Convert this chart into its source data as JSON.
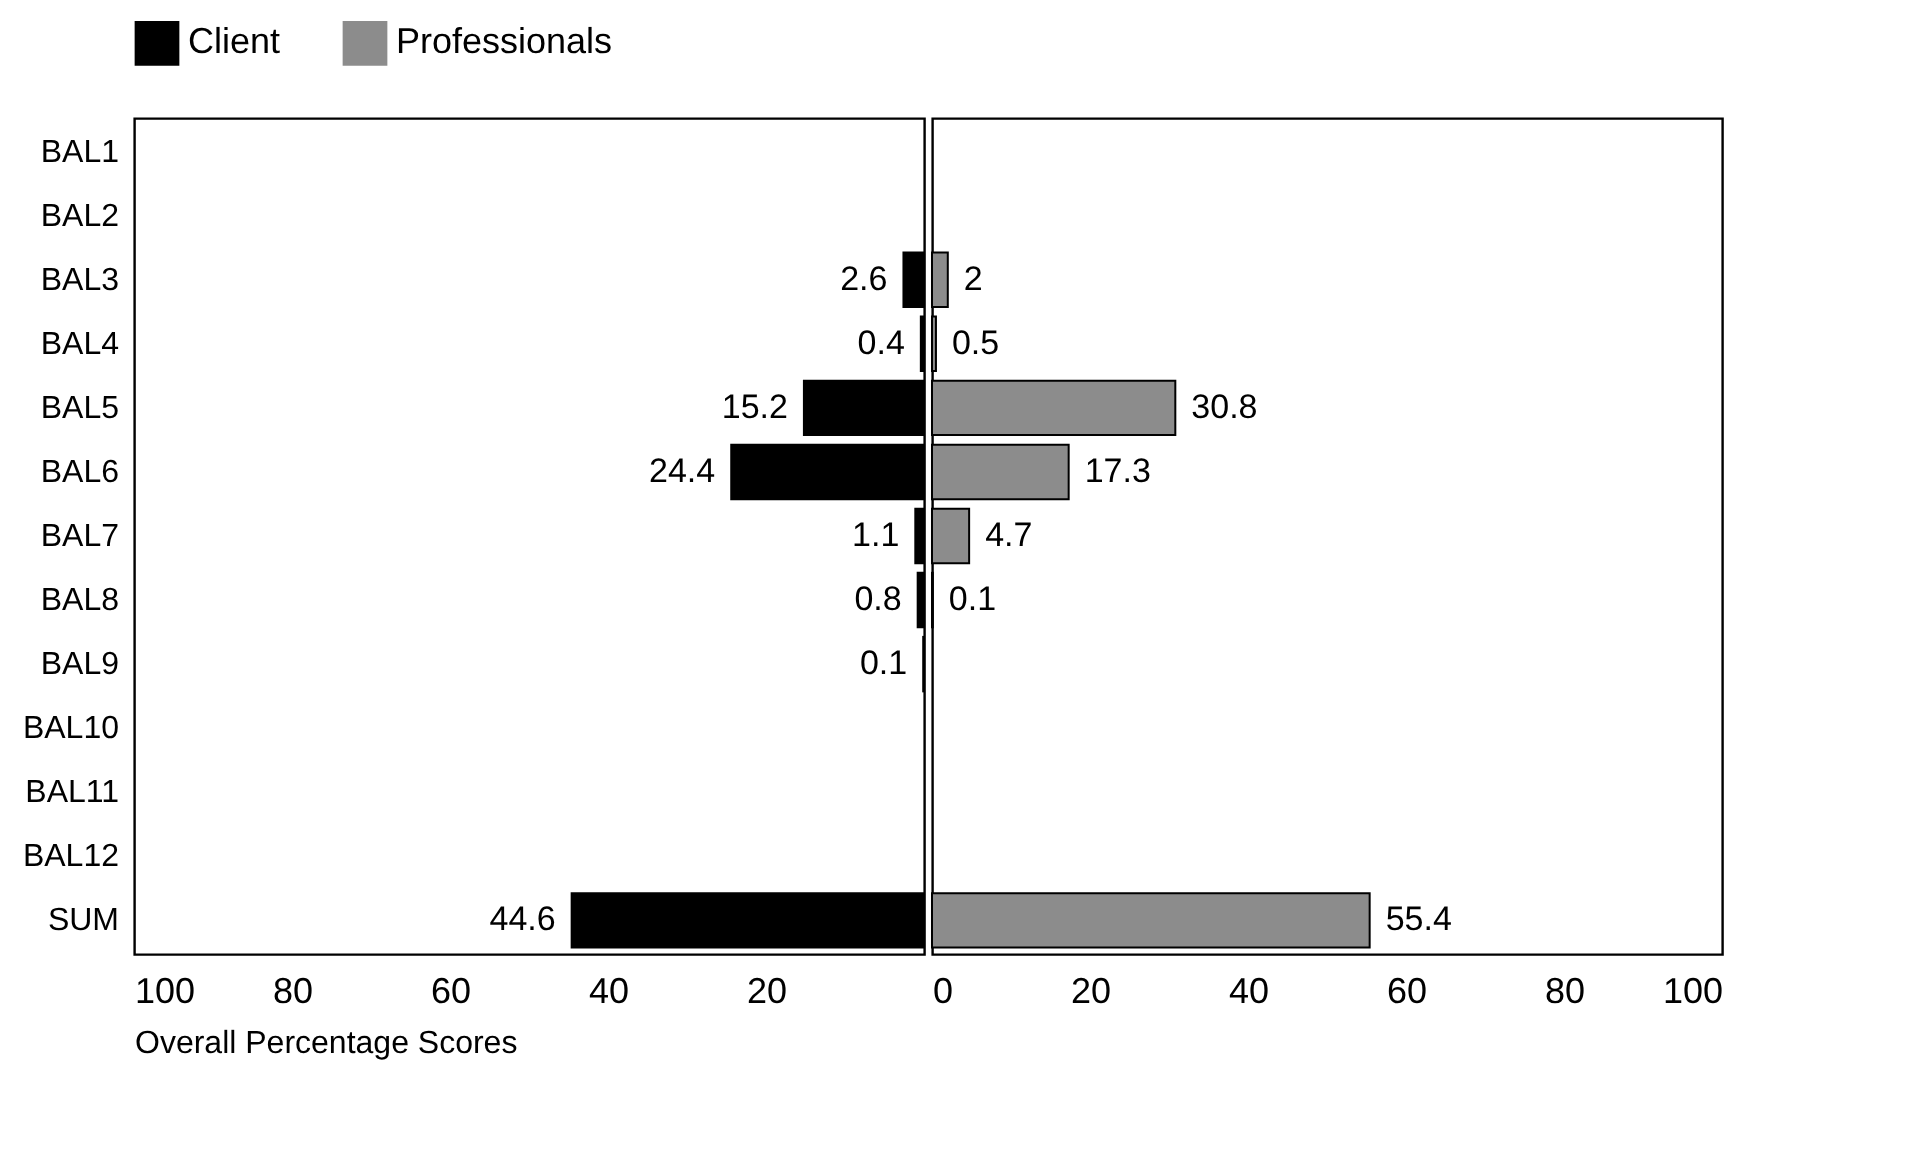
{
  "chart_data": [
    {
      "type": "bar",
      "orientation": "horizontal",
      "xlabel": "Overall Percentage Scores",
      "categories": [
        "BAL1",
        "BAL2",
        "BAL3",
        "BAL4",
        "BAL5",
        "BAL6",
        "BAL7",
        "BAL8",
        "BAL9",
        "BAL10",
        "BAL11",
        "BAL12",
        "SUM"
      ],
      "series": [
        {
          "name": "Client",
          "color": "#000000",
          "values": [
            null,
            null,
            2.6,
            0.4,
            15.2,
            24.4,
            1.1,
            0.8,
            0.1,
            null,
            null,
            null,
            44.6
          ]
        }
      ],
      "data_labels": true,
      "xlim": [
        100,
        0
      ],
      "xticks": [
        100,
        80,
        60,
        40,
        20
      ],
      "grid": false,
      "legend": "top left"
    },
    {
      "type": "bar",
      "orientation": "horizontal",
      "categories": [
        "BAL1",
        "BAL2",
        "BAL3",
        "BAL4",
        "BAL5",
        "BAL6",
        "BAL7",
        "BAL8",
        "BAL9",
        "BAL10",
        "BAL11",
        "BAL12",
        "SUM"
      ],
      "series": [
        {
          "name": "Professionals",
          "color": "#8c8c8c",
          "values": [
            null,
            null,
            2,
            0.5,
            30.8,
            17.3,
            4.7,
            0.1,
            null,
            null,
            null,
            null,
            55.4
          ]
        }
      ],
      "data_labels": true,
      "xlim": [
        0,
        100
      ],
      "xticks": [
        0,
        20,
        40,
        60,
        80,
        100
      ],
      "tick_labels": "x",
      "grid": false,
      "legend": "top left"
    }
  ]
}
